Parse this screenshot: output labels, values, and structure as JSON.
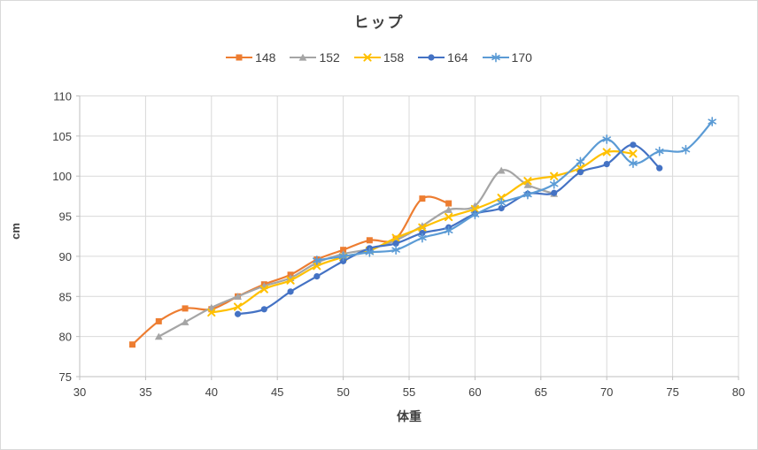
{
  "chart_data": {
    "type": "line",
    "title": "ヒップ",
    "xlabel": "体重",
    "ylabel": "cm",
    "xlim": [
      30,
      80
    ],
    "ylim": [
      75,
      110
    ],
    "x_ticks": [
      30,
      35,
      40,
      45,
      50,
      55,
      60,
      65,
      70,
      75,
      80
    ],
    "y_ticks": [
      75,
      80,
      85,
      90,
      95,
      100,
      105,
      110
    ],
    "grid": true,
    "legend_position": "top",
    "line_style": "smooth",
    "series": [
      {
        "name": "148",
        "color": "#ED7D31",
        "marker": "square",
        "points": [
          [
            34,
            79
          ],
          [
            36,
            81.9
          ],
          [
            38,
            83.5
          ],
          [
            40,
            83.4
          ],
          [
            42,
            85.0
          ],
          [
            44,
            86.5
          ],
          [
            46,
            87.7
          ],
          [
            48,
            89.6
          ],
          [
            50,
            90.8
          ],
          [
            52,
            92.0
          ],
          [
            54,
            92.2
          ],
          [
            56,
            97.2
          ],
          [
            58,
            96.6
          ]
        ]
      },
      {
        "name": "152",
        "color": "#A5A5A5",
        "marker": "triangle",
        "points": [
          [
            36,
            80
          ],
          [
            38,
            81.8
          ],
          [
            40,
            83.6
          ],
          [
            42,
            85.0
          ],
          [
            44,
            86.3
          ],
          [
            46,
            87.3
          ],
          [
            48,
            89.2
          ],
          [
            50,
            90.3
          ],
          [
            52,
            90.9
          ],
          [
            54,
            92.0
          ],
          [
            56,
            93.8
          ],
          [
            58,
            95.8
          ],
          [
            60,
            96.3
          ],
          [
            62,
            100.7
          ],
          [
            64,
            98.9
          ],
          [
            66,
            97.8
          ]
        ]
      },
      {
        "name": "158",
        "color": "#FFC000",
        "marker": "x",
        "points": [
          [
            40,
            83
          ],
          [
            42,
            83.7
          ],
          [
            44,
            85.9
          ],
          [
            46,
            87.0
          ],
          [
            48,
            88.8
          ],
          [
            50,
            89.9
          ],
          [
            52,
            90.7
          ],
          [
            54,
            92.3
          ],
          [
            56,
            93.6
          ],
          [
            58,
            94.9
          ],
          [
            60,
            95.9
          ],
          [
            62,
            97.3
          ],
          [
            64,
            99.4
          ],
          [
            66,
            100.0
          ],
          [
            68,
            101.0
          ],
          [
            70,
            103.0
          ],
          [
            72,
            102.8
          ]
        ]
      },
      {
        "name": "164",
        "color": "#4472C4",
        "marker": "circle",
        "points": [
          [
            42,
            82.8
          ],
          [
            44,
            83.4
          ],
          [
            46,
            85.6
          ],
          [
            48,
            87.5
          ],
          [
            50,
            89.4
          ],
          [
            52,
            91.0
          ],
          [
            54,
            91.6
          ],
          [
            56,
            92.9
          ],
          [
            58,
            93.6
          ],
          [
            60,
            95.3
          ],
          [
            62,
            96.0
          ],
          [
            64,
            97.8
          ],
          [
            66,
            97.9
          ],
          [
            68,
            100.5
          ],
          [
            70,
            101.5
          ],
          [
            72,
            103.9
          ],
          [
            74,
            101.0
          ]
        ]
      },
      {
        "name": "170",
        "color": "#5B9BD5",
        "marker": "asterisk",
        "points": [
          [
            48,
            89.5
          ],
          [
            50,
            90.0
          ],
          [
            52,
            90.5
          ],
          [
            54,
            90.8
          ],
          [
            56,
            92.3
          ],
          [
            58,
            93.2
          ],
          [
            60,
            95.2
          ],
          [
            62,
            96.7
          ],
          [
            64,
            97.7
          ],
          [
            66,
            99.0
          ],
          [
            68,
            101.8
          ],
          [
            70,
            104.6
          ],
          [
            72,
            101.6
          ],
          [
            74,
            103.1
          ],
          [
            76,
            103.3
          ],
          [
            78,
            106.8
          ]
        ]
      }
    ]
  },
  "styles": {
    "background": "#FFFFFF",
    "grid_color": "#D9D9D9",
    "axis_color": "#BFBFBF",
    "text_color": "#404040",
    "chart_border_color": "#D9D9D9"
  }
}
